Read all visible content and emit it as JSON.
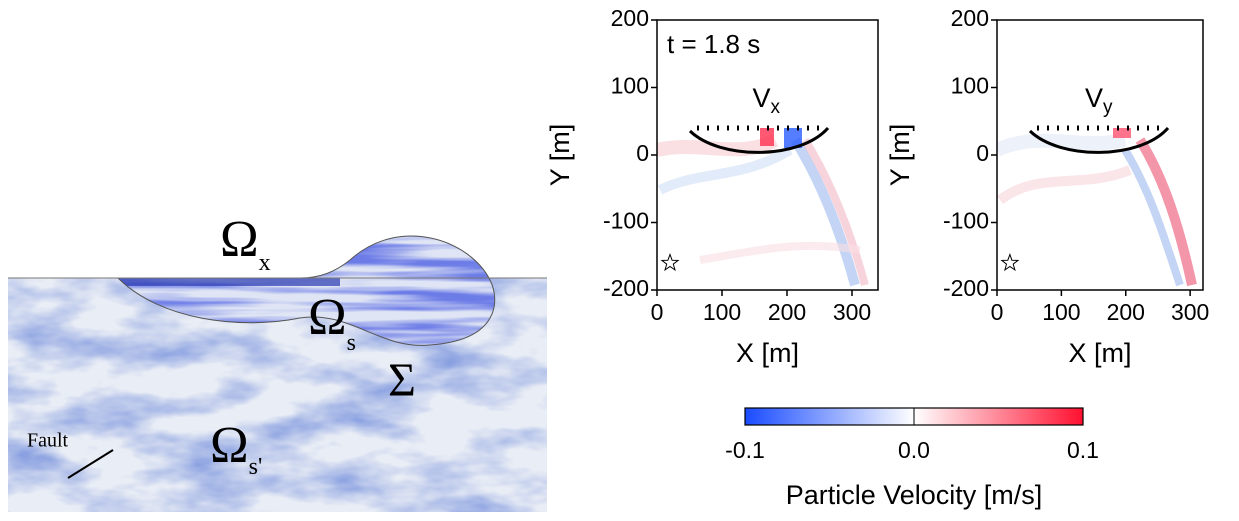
{
  "diagram": {
    "labels": [
      {
        "symbol": "Ω",
        "sub": "x"
      },
      {
        "symbol": "Ω",
        "sub": "s"
      },
      {
        "symbol": "Σ"
      },
      {
        "symbol": "Ω",
        "sub": "s'"
      }
    ],
    "fault": "Fault"
  },
  "chart_data": [
    {
      "type": "heatmap",
      "title": "V",
      "title_sub": "x",
      "annotation": "t = 1.8 s",
      "xlabel": "X [m]",
      "ylabel": "Y [m]",
      "xlim": [
        0,
        340
      ],
      "ylim": [
        -200,
        200
      ],
      "xticks": [
        0,
        100,
        200,
        300
      ],
      "yticks": [
        -200,
        -100,
        0,
        100,
        200
      ],
      "source": {
        "x": 20,
        "y": -160
      }
    },
    {
      "type": "heatmap",
      "title": "V",
      "title_sub": "y",
      "xlabel": "X [m]",
      "ylabel": "Y [m]",
      "xlim": [
        0,
        320
      ],
      "ylim": [
        -200,
        200
      ],
      "xticks": [
        0,
        100,
        200,
        300
      ],
      "yticks": [
        -200,
        -100,
        0,
        100,
        200
      ],
      "source": {
        "x": 20,
        "y": -160
      }
    },
    {
      "type": "colorbar",
      "xlabel": "Particle Velocity [m/s]",
      "xlim": [
        -0.1,
        0.1
      ],
      "xticks": [
        -0.1,
        {
          "value": 0,
          "label": "0.0"
        },
        0.1
      ],
      "colors": [
        "#1a4cff",
        "#ffffff",
        "#ff1030"
      ]
    }
  ]
}
